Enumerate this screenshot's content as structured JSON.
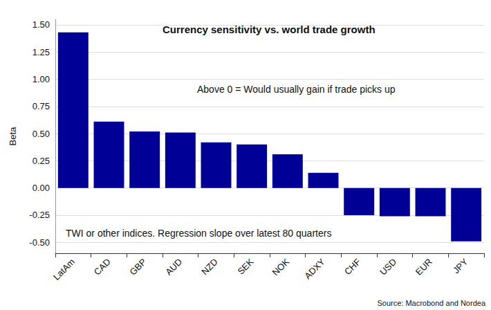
{
  "chart_data": {
    "type": "bar",
    "title": "Currency sensitivity vs. world trade growth",
    "ylabel": "Beta",
    "annotations": [
      "Above 0 = Would usually gain if trade picks up",
      "TWI or other indices. Regression slope over latest 80 quarters"
    ],
    "source": "Source: Macrobond and Nordea",
    "categories": [
      "LatAm",
      "CAD",
      "GBP",
      "AUD",
      "NZD",
      "SEK",
      "NOK",
      "ADXY",
      "CHF",
      "USD",
      "EUR",
      "JPY"
    ],
    "values": [
      1.43,
      0.61,
      0.52,
      0.51,
      0.42,
      0.4,
      0.31,
      0.14,
      -0.25,
      -0.26,
      -0.26,
      -0.49
    ],
    "color": "#000096",
    "ylim": [
      -0.6,
      1.55
    ],
    "yticks": [
      {
        "value": -0.5,
        "label": "-0.50"
      },
      {
        "value": -0.25,
        "label": "-0.25"
      },
      {
        "value": 0,
        "label": "0.00"
      },
      {
        "value": 0.25,
        "label": "0.25"
      },
      {
        "value": 0.5,
        "label": "0.50"
      },
      {
        "value": 0.75,
        "label": "0.75"
      },
      {
        "value": 1,
        "label": "1.00"
      },
      {
        "value": 1.25,
        "label": "1.25"
      },
      {
        "value": 1.5,
        "label": "1.50"
      }
    ],
    "grid": true
  }
}
